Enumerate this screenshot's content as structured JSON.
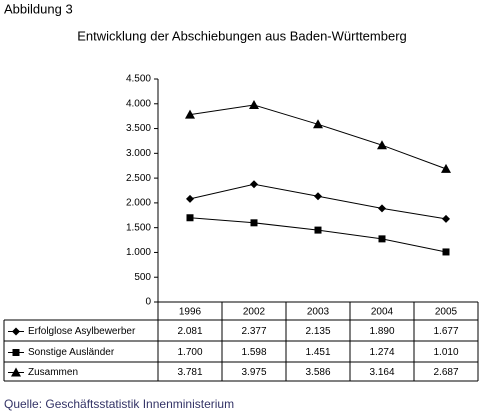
{
  "figure_label": "Abbildung 3",
  "source": "Quelle: Geschäftsstatistik Innenministerium",
  "chart_data": {
    "type": "line",
    "title": "Entwicklung der Abschiebungen aus Baden-Württemberg",
    "categories": [
      "1996",
      "2002",
      "2003",
      "2004",
      "2005"
    ],
    "ylim": [
      0,
      4500
    ],
    "yticks": [
      0,
      {
        "value": 500,
        "label": "500"
      },
      {
        "value": 1000,
        "label": "1.000"
      },
      {
        "value": 1500,
        "label": "1.500"
      },
      {
        "value": 2000,
        "label": "2.000"
      },
      {
        "value": 2500,
        "label": "2.500"
      },
      {
        "value": 3000,
        "label": "3.000"
      },
      {
        "value": 3500,
        "label": "3.500"
      },
      {
        "value": 4000,
        "label": "4.000"
      },
      {
        "value": 4500,
        "label": "4.500"
      }
    ],
    "series": [
      {
        "name": "Erfolglose Asylbewerber",
        "color": "#000000",
        "marker": "diamond",
        "values": [
          2081,
          2377,
          2135,
          1890,
          1677
        ],
        "value_labels": [
          "2.081",
          "2.377",
          "2.135",
          "1.890",
          "1.677"
        ]
      },
      {
        "name": "Sonstige Ausländer",
        "color": "#000000",
        "marker": "square",
        "values": [
          1700,
          1598,
          1451,
          1274,
          1010
        ],
        "value_labels": [
          "1.700",
          "1.598",
          "1.451",
          "1.274",
          "1.010"
        ]
      },
      {
        "name": "Zusammen",
        "color": "#000000",
        "marker": "triangle",
        "values": [
          3781,
          3975,
          3586,
          3164,
          2687
        ],
        "value_labels": [
          "3.781",
          "3.975",
          "3.586",
          "3.164",
          "2.687"
        ]
      }
    ]
  }
}
